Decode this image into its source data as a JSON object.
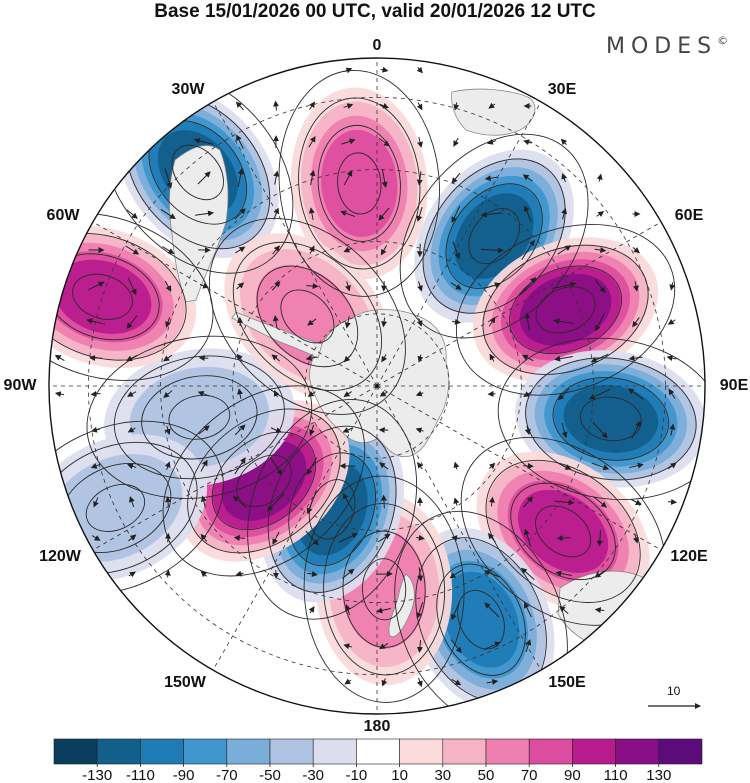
{
  "title": "Base 15/01/2026 00 UTC, valid 20/01/2026 12 UTC",
  "brand": {
    "name": "MODES",
    "mark": "©"
  },
  "longitude_labels": {
    "lon_0": "0",
    "lon_30e": "30E",
    "lon_60e": "60E",
    "lon_90e": "90E",
    "lon_120e": "120E",
    "lon_150e": "150E",
    "lon_180": "180",
    "lon_150w": "150W",
    "lon_120w": "120W",
    "lon_90w": "90W",
    "lon_60w": "60W",
    "lon_30w": "30W"
  },
  "reference_vector": {
    "label": "10",
    "magnitude": 10
  },
  "colorbar": {
    "tick_labels": [
      "-130",
      "-110",
      "-90",
      "-70",
      "-50",
      "-30",
      "-10",
      "10",
      "30",
      "50",
      "70",
      "90",
      "110",
      "130"
    ],
    "bins": [
      {
        "lo": -150,
        "hi": -130,
        "color": "#0b3d5c"
      },
      {
        "lo": -130,
        "hi": -110,
        "color": "#135f8c"
      },
      {
        "lo": -110,
        "hi": -90,
        "color": "#1f7bb6"
      },
      {
        "lo": -90,
        "hi": -70,
        "color": "#3f97cd"
      },
      {
        "lo": -70,
        "hi": -50,
        "color": "#7aaed9"
      },
      {
        "lo": -50,
        "hi": -30,
        "color": "#aec3e2"
      },
      {
        "lo": -30,
        "hi": -10,
        "color": "#dcdeef"
      },
      {
        "lo": -10,
        "hi": 10,
        "color": "#ffffff"
      },
      {
        "lo": 10,
        "hi": 30,
        "color": "#fadada"
      },
      {
        "lo": 30,
        "hi": 50,
        "color": "#f6b3c6"
      },
      {
        "lo": 50,
        "hi": 70,
        "color": "#ee7fb0"
      },
      {
        "lo": 70,
        "hi": 90,
        "color": "#dd4d9f"
      },
      {
        "lo": 90,
        "hi": 110,
        "color": "#b81b8e"
      },
      {
        "lo": 110,
        "hi": 130,
        "color": "#8a0f86"
      },
      {
        "lo": 130,
        "hi": 150,
        "color": "#5c0b7a"
      }
    ]
  },
  "anomaly_centers": [
    {
      "name": "pos-0",
      "lon": -5,
      "lat_from_edge": 0.62,
      "value": 85
    },
    {
      "name": "neg-30e",
      "lon": 38,
      "lat_from_edge": 0.58,
      "value": -120
    },
    {
      "name": "pos-60e",
      "lon": 68,
      "lat_from_edge": 0.62,
      "value": 125
    },
    {
      "name": "neg-90e",
      "lon": 98,
      "lat_from_edge": 0.72,
      "value": -110
    },
    {
      "name": "pos-120e",
      "lon": 128,
      "lat_from_edge": 0.72,
      "value": 95
    },
    {
      "name": "neg-150e",
      "lon": 156,
      "lat_from_edge": 0.78,
      "value": -100
    },
    {
      "name": "pos-180",
      "lon": 178,
      "lat_from_edge": 0.62,
      "value": 65
    },
    {
      "name": "neg-160w",
      "lon": -160,
      "lat_from_edge": 0.4,
      "value": -120
    },
    {
      "name": "pos-130w",
      "lon": -130,
      "lat_from_edge": 0.45,
      "value": 110
    },
    {
      "name": "neg-100w",
      "lon": -100,
      "lat_from_edge": 0.55,
      "value": -40
    },
    {
      "name": "pos-65w",
      "lon": -72,
      "lat_from_edge": 0.88,
      "value": 95
    },
    {
      "name": "neg-40w",
      "lon": -40,
      "lat_from_edge": 0.85,
      "value": -115
    },
    {
      "name": "pos-45w",
      "lon": -45,
      "lat_from_edge": 0.3,
      "value": 50
    },
    {
      "name": "neg-115w",
      "lon": -115,
      "lat_from_edge": 0.88,
      "value": -30
    }
  ]
}
